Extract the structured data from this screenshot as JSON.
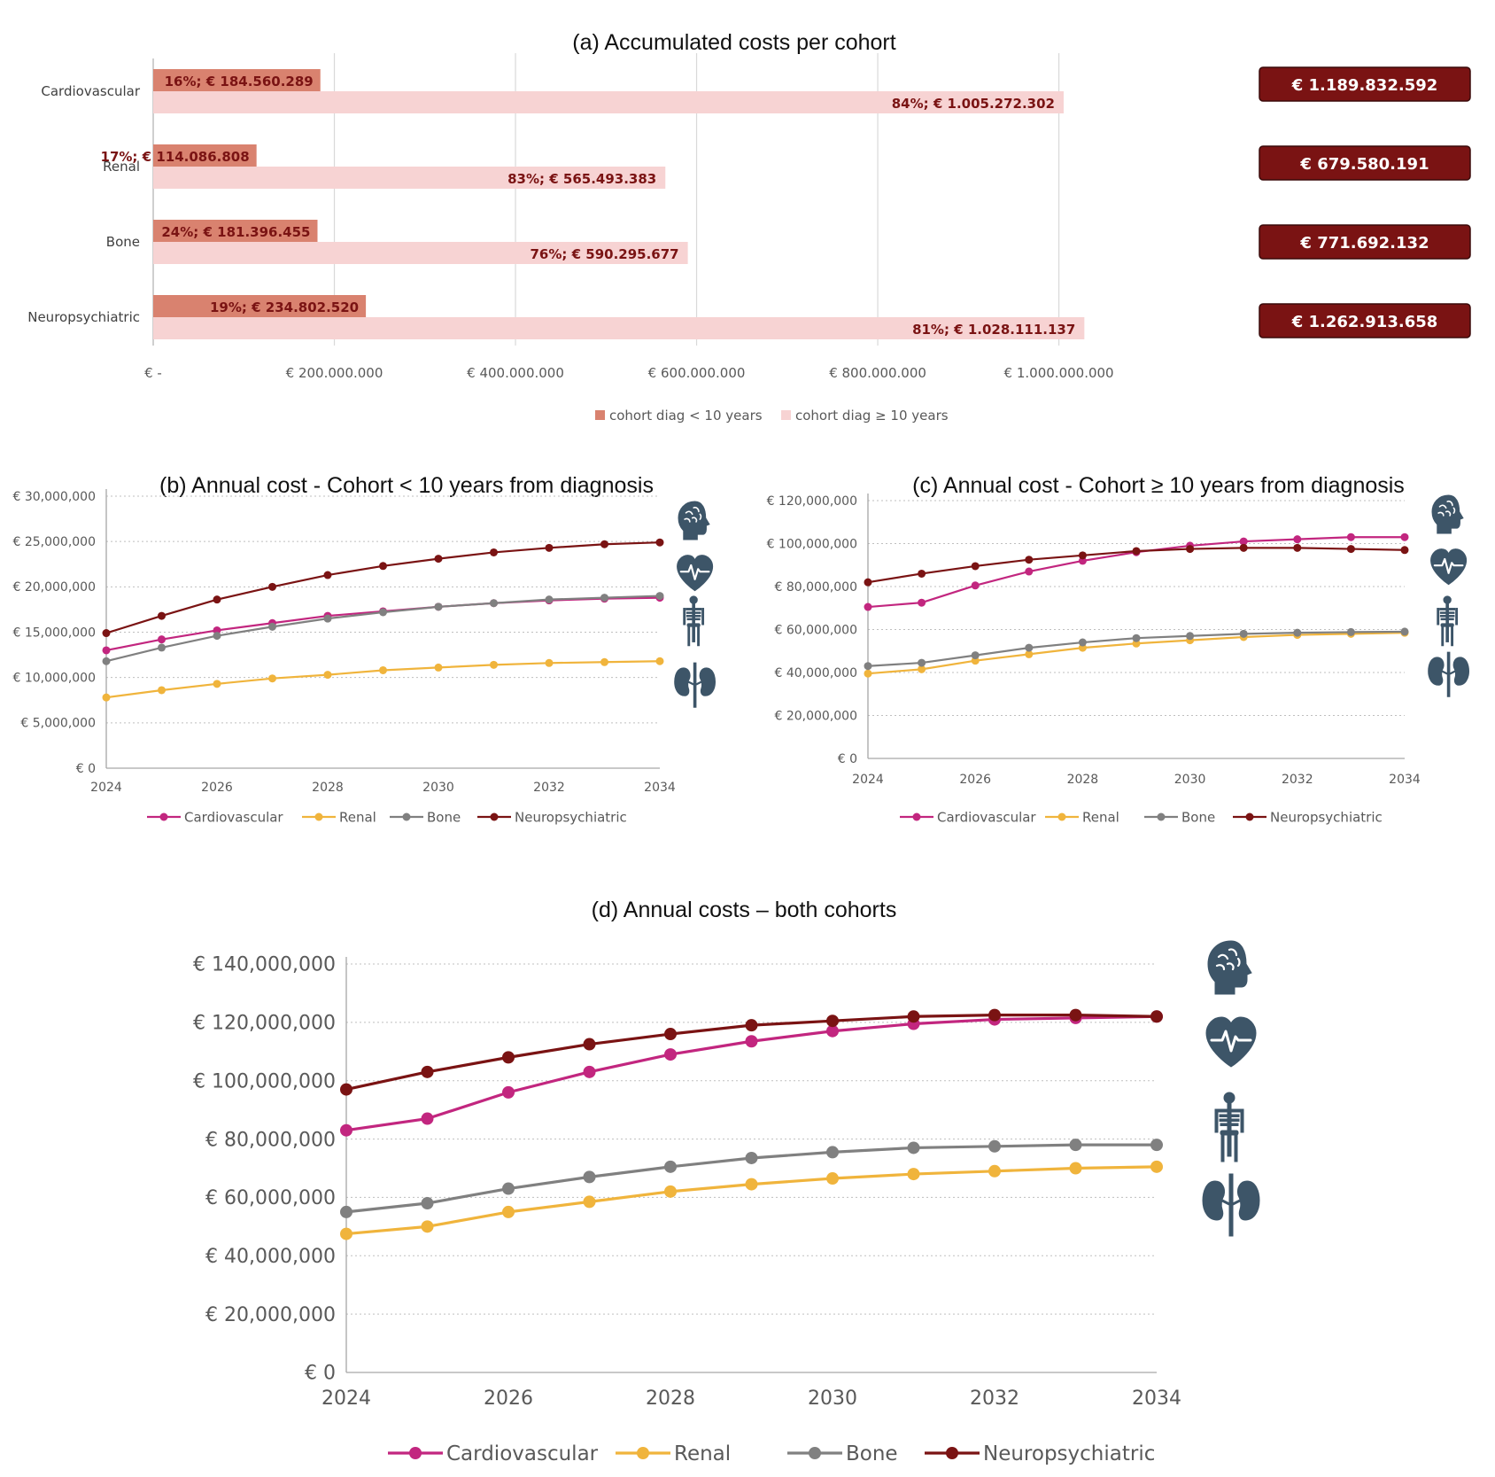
{
  "colors": {
    "cardiovascular": "#c2267f",
    "renal": "#f0b43c",
    "bone": "#808080",
    "neuropsychiatric": "#7a1313",
    "bar_lt10": "#d9826f",
    "bar_ge10": "#f7d3d3",
    "total_box": "#7a1313",
    "icon": "#3d5568"
  },
  "icons": [
    "brain-icon",
    "heart-icon",
    "skeleton-icon",
    "kidney-icon"
  ],
  "chart_data": [
    {
      "id": "a",
      "type": "bar",
      "orientation": "horizontal",
      "title": "(a) Accumulated costs per cohort",
      "categories": [
        "Cardiovascular",
        "Renal",
        "Bone",
        "Neuropsychiatric"
      ],
      "series": [
        {
          "name": "cohort diag < 10 years",
          "values": [
            184560289,
            114086808,
            181396455,
            234802520
          ],
          "labels": [
            "16%; € 184.560.289",
            "17%; € 114.086.808",
            "24%; € 181.396.455",
            "19%; € 234.802.520"
          ]
        },
        {
          "name": "cohort diag ≥ 10 years",
          "values": [
            1005272302,
            565493383,
            590295677,
            1028111137
          ],
          "labels": [
            "84%; € 1.005.272.302",
            "83%; € 565.493.383",
            "76%; € 590.295.677",
            "81%; € 1.028.111.137"
          ]
        }
      ],
      "totals": [
        "€ 1.189.832.592",
        "€ 679.580.191",
        "€ 771.692.132",
        "€ 1.262.913.658"
      ],
      "xlim": [
        0,
        1000000000
      ],
      "xticks": [
        0,
        200000000,
        400000000,
        600000000,
        800000000,
        1000000000
      ],
      "xtick_labels": [
        "€ -",
        "€ 200.000.000",
        "€ 400.000.000",
        "€ 600.000.000",
        "€ 800.000.000",
        "€ 1.000.000.000"
      ],
      "legend": [
        "cohort diag < 10 years",
        "cohort diag ≥ 10 years"
      ]
    },
    {
      "id": "b",
      "type": "line",
      "title": "(b) Annual cost - Cohort < 10 years from diagnosis",
      "x": [
        2024,
        2025,
        2026,
        2027,
        2028,
        2029,
        2030,
        2031,
        2032,
        2033,
        2034
      ],
      "series": [
        {
          "name": "Cardiovascular",
          "values": [
            13000000,
            14200000,
            15200000,
            16000000,
            16800000,
            17300000,
            17800000,
            18200000,
            18500000,
            18700000,
            18800000
          ]
        },
        {
          "name": "Renal",
          "values": [
            7800000,
            8600000,
            9300000,
            9900000,
            10300000,
            10800000,
            11100000,
            11400000,
            11600000,
            11700000,
            11800000
          ]
        },
        {
          "name": "Bone",
          "values": [
            11800000,
            13300000,
            14600000,
            15600000,
            16500000,
            17200000,
            17800000,
            18200000,
            18600000,
            18800000,
            19000000
          ]
        },
        {
          "name": "Neuropsychiatric",
          "values": [
            14900000,
            16800000,
            18600000,
            20000000,
            21300000,
            22300000,
            23100000,
            23800000,
            24300000,
            24700000,
            24900000
          ]
        }
      ],
      "ylim": [
        0,
        30000000
      ],
      "yticks": [
        0,
        5000000,
        10000000,
        15000000,
        20000000,
        25000000,
        30000000
      ],
      "ytick_labels": [
        "€ 0",
        "€ 5,000,000",
        "€ 10,000,000",
        "€ 15,000,000",
        "€ 20,000,000",
        "€ 25,000,000",
        "€ 30,000,000"
      ],
      "xticks": [
        2024,
        2026,
        2028,
        2030,
        2032,
        2034
      ],
      "xtick_labels": [
        "2024",
        "2026",
        "2028",
        "2030",
        "2032",
        "2034"
      ],
      "legend": [
        "Cardiovascular",
        "Renal",
        "Bone",
        "Neuropsychiatric"
      ]
    },
    {
      "id": "c",
      "type": "line",
      "title": "(c) Annual cost - Cohort ≥ 10 years from diagnosis",
      "x": [
        2024,
        2025,
        2026,
        2027,
        2028,
        2029,
        2030,
        2031,
        2032,
        2033,
        2034
      ],
      "series": [
        {
          "name": "Cardiovascular",
          "values": [
            70500000,
            72500000,
            80500000,
            87000000,
            92000000,
            96000000,
            99000000,
            101000000,
            102000000,
            103000000,
            103000000
          ]
        },
        {
          "name": "Renal",
          "values": [
            39500000,
            41500000,
            45500000,
            48500000,
            51500000,
            53500000,
            55000000,
            56500000,
            57500000,
            58000000,
            58500000
          ]
        },
        {
          "name": "Bone",
          "values": [
            43000000,
            44500000,
            48000000,
            51500000,
            54000000,
            56000000,
            57000000,
            58000000,
            58500000,
            58800000,
            59000000
          ]
        },
        {
          "name": "Neuropsychiatric",
          "values": [
            82000000,
            86000000,
            89500000,
            92500000,
            94500000,
            96500000,
            97500000,
            98000000,
            98000000,
            97500000,
            97000000
          ]
        }
      ],
      "ylim": [
        0,
        120000000
      ],
      "yticks": [
        0,
        20000000,
        40000000,
        60000000,
        80000000,
        100000000,
        120000000
      ],
      "ytick_labels": [
        "€ 0",
        "€ 20,000,000",
        "€ 40,000,000",
        "€ 60,000,000",
        "€ 80,000,000",
        "€ 100,000,000",
        "€ 120,000,000"
      ],
      "xticks": [
        2024,
        2026,
        2028,
        2030,
        2032,
        2034
      ],
      "xtick_labels": [
        "2024",
        "2026",
        "2028",
        "2030",
        "2032",
        "2034"
      ],
      "legend": [
        "Cardiovascular",
        "Renal",
        "Bone",
        "Neuropsychiatric"
      ]
    },
    {
      "id": "d",
      "type": "line",
      "title": "(d) Annual costs – both cohorts",
      "x": [
        2024,
        2025,
        2026,
        2027,
        2028,
        2029,
        2030,
        2031,
        2032,
        2033,
        2034
      ],
      "series": [
        {
          "name": "Cardiovascular",
          "values": [
            83000000,
            87000000,
            96000000,
            103000000,
            109000000,
            113500000,
            117000000,
            119500000,
            121000000,
            121500000,
            122000000
          ]
        },
        {
          "name": "Renal",
          "values": [
            47500000,
            50000000,
            55000000,
            58500000,
            62000000,
            64500000,
            66500000,
            68000000,
            69000000,
            70000000,
            70500000
          ]
        },
        {
          "name": "Bone",
          "values": [
            55000000,
            58000000,
            63000000,
            67000000,
            70500000,
            73500000,
            75500000,
            77000000,
            77500000,
            78000000,
            78000000
          ]
        },
        {
          "name": "Neuropsychiatric",
          "values": [
            97000000,
            103000000,
            108000000,
            112500000,
            116000000,
            119000000,
            120500000,
            122000000,
            122500000,
            122500000,
            122000000
          ]
        }
      ],
      "ylim": [
        0,
        140000000
      ],
      "yticks": [
        0,
        20000000,
        40000000,
        60000000,
        80000000,
        100000000,
        120000000,
        140000000
      ],
      "ytick_labels": [
        "€ 0",
        "€ 20,000,000",
        "€ 40,000,000",
        "€ 60,000,000",
        "€ 80,000,000",
        "€ 100,000,000",
        "€ 120,000,000",
        "€ 140,000,000"
      ],
      "xticks": [
        2024,
        2026,
        2028,
        2030,
        2032,
        2034
      ],
      "xtick_labels": [
        "2024",
        "2026",
        "2028",
        "2030",
        "2032",
        "2034"
      ],
      "legend": [
        "Cardiovascular",
        "Renal",
        "Bone",
        "Neuropsychiatric"
      ]
    }
  ]
}
